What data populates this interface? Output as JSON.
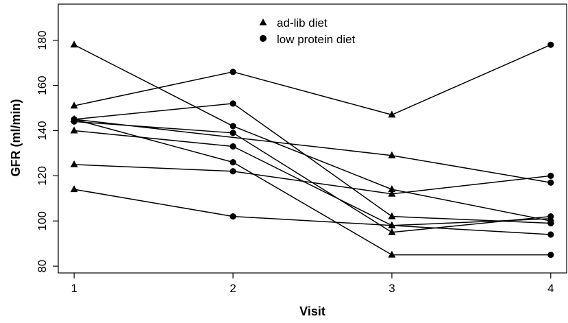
{
  "chart_data": {
    "type": "line",
    "xlabel": "Visit",
    "ylabel": "GFR (ml/min)",
    "xlim": [
      0.9,
      4.1
    ],
    "ylim": [
      77,
      196
    ],
    "x_ticks": [
      1,
      2,
      3,
      4
    ],
    "y_ticks": [
      80,
      100,
      120,
      140,
      160,
      180
    ],
    "grid": false,
    "legend_position": "top-center",
    "legend": [
      {
        "marker": "triangle",
        "label": "ad-lib diet"
      },
      {
        "marker": "circle",
        "label": "low protein diet"
      }
    ],
    "series": [
      {
        "points": [
          {
            "x": 1,
            "y": 178,
            "m": "triangle"
          },
          {
            "x": 2,
            "y": 142,
            "m": "circle"
          },
          {
            "x": 3,
            "y": 114,
            "m": "triangle"
          },
          {
            "x": 4,
            "y": 100,
            "m": "triangle"
          }
        ]
      },
      {
        "points": [
          {
            "x": 1,
            "y": 151,
            "m": "triangle"
          },
          {
            "x": 2,
            "y": 166,
            "m": "circle"
          },
          {
            "x": 3,
            "y": 147,
            "m": "triangle"
          },
          {
            "x": 4,
            "y": 178,
            "m": "circle"
          }
        ]
      },
      {
        "points": [
          {
            "x": 1,
            "y": 145,
            "m": "triangle"
          },
          {
            "x": 2,
            "y": 152,
            "m": "circle"
          },
          {
            "x": 3,
            "y": 102,
            "m": "triangle"
          },
          {
            "x": 4,
            "y": 99,
            "m": "circle"
          }
        ]
      },
      {
        "points": [
          {
            "x": 1,
            "y": 144,
            "m": "circle"
          },
          {
            "x": 2,
            "y": 139,
            "m": "circle"
          },
          {
            "x": 3,
            "y": 95,
            "m": "triangle"
          },
          {
            "x": 4,
            "y": 102,
            "m": "circle"
          }
        ]
      },
      {
        "points": [
          {
            "x": 1,
            "y": 145,
            "m": "circle"
          },
          {
            "x": 3,
            "y": 129,
            "m": "triangle"
          },
          {
            "x": 4,
            "y": 117,
            "m": "circle"
          }
        ]
      },
      {
        "points": [
          {
            "x": 1,
            "y": 140,
            "m": "triangle"
          },
          {
            "x": 2,
            "y": 133,
            "m": "circle"
          },
          {
            "x": 3,
            "y": 98,
            "m": "triangle"
          },
          {
            "x": 4,
            "y": 94,
            "m": "circle"
          }
        ]
      },
      {
        "points": [
          {
            "x": 1,
            "y": 145,
            "m": "triangle"
          },
          {
            "x": 2,
            "y": 126,
            "m": "circle"
          },
          {
            "x": 3,
            "y": 85,
            "m": "triangle"
          },
          {
            "x": 4,
            "y": 85,
            "m": "circle"
          }
        ]
      },
      {
        "points": [
          {
            "x": 1,
            "y": 125,
            "m": "triangle"
          },
          {
            "x": 2,
            "y": 122,
            "m": "circle"
          },
          {
            "x": 3,
            "y": 112,
            "m": "triangle"
          },
          {
            "x": 4,
            "y": 120,
            "m": "circle"
          }
        ]
      },
      {
        "points": [
          {
            "x": 1,
            "y": 114,
            "m": "triangle"
          },
          {
            "x": 2,
            "y": 102,
            "m": "circle"
          },
          {
            "x": 3,
            "y": 98,
            "m": "triangle"
          },
          {
            "x": 4,
            "y": 101,
            "m": "triangle"
          }
        ]
      }
    ]
  }
}
